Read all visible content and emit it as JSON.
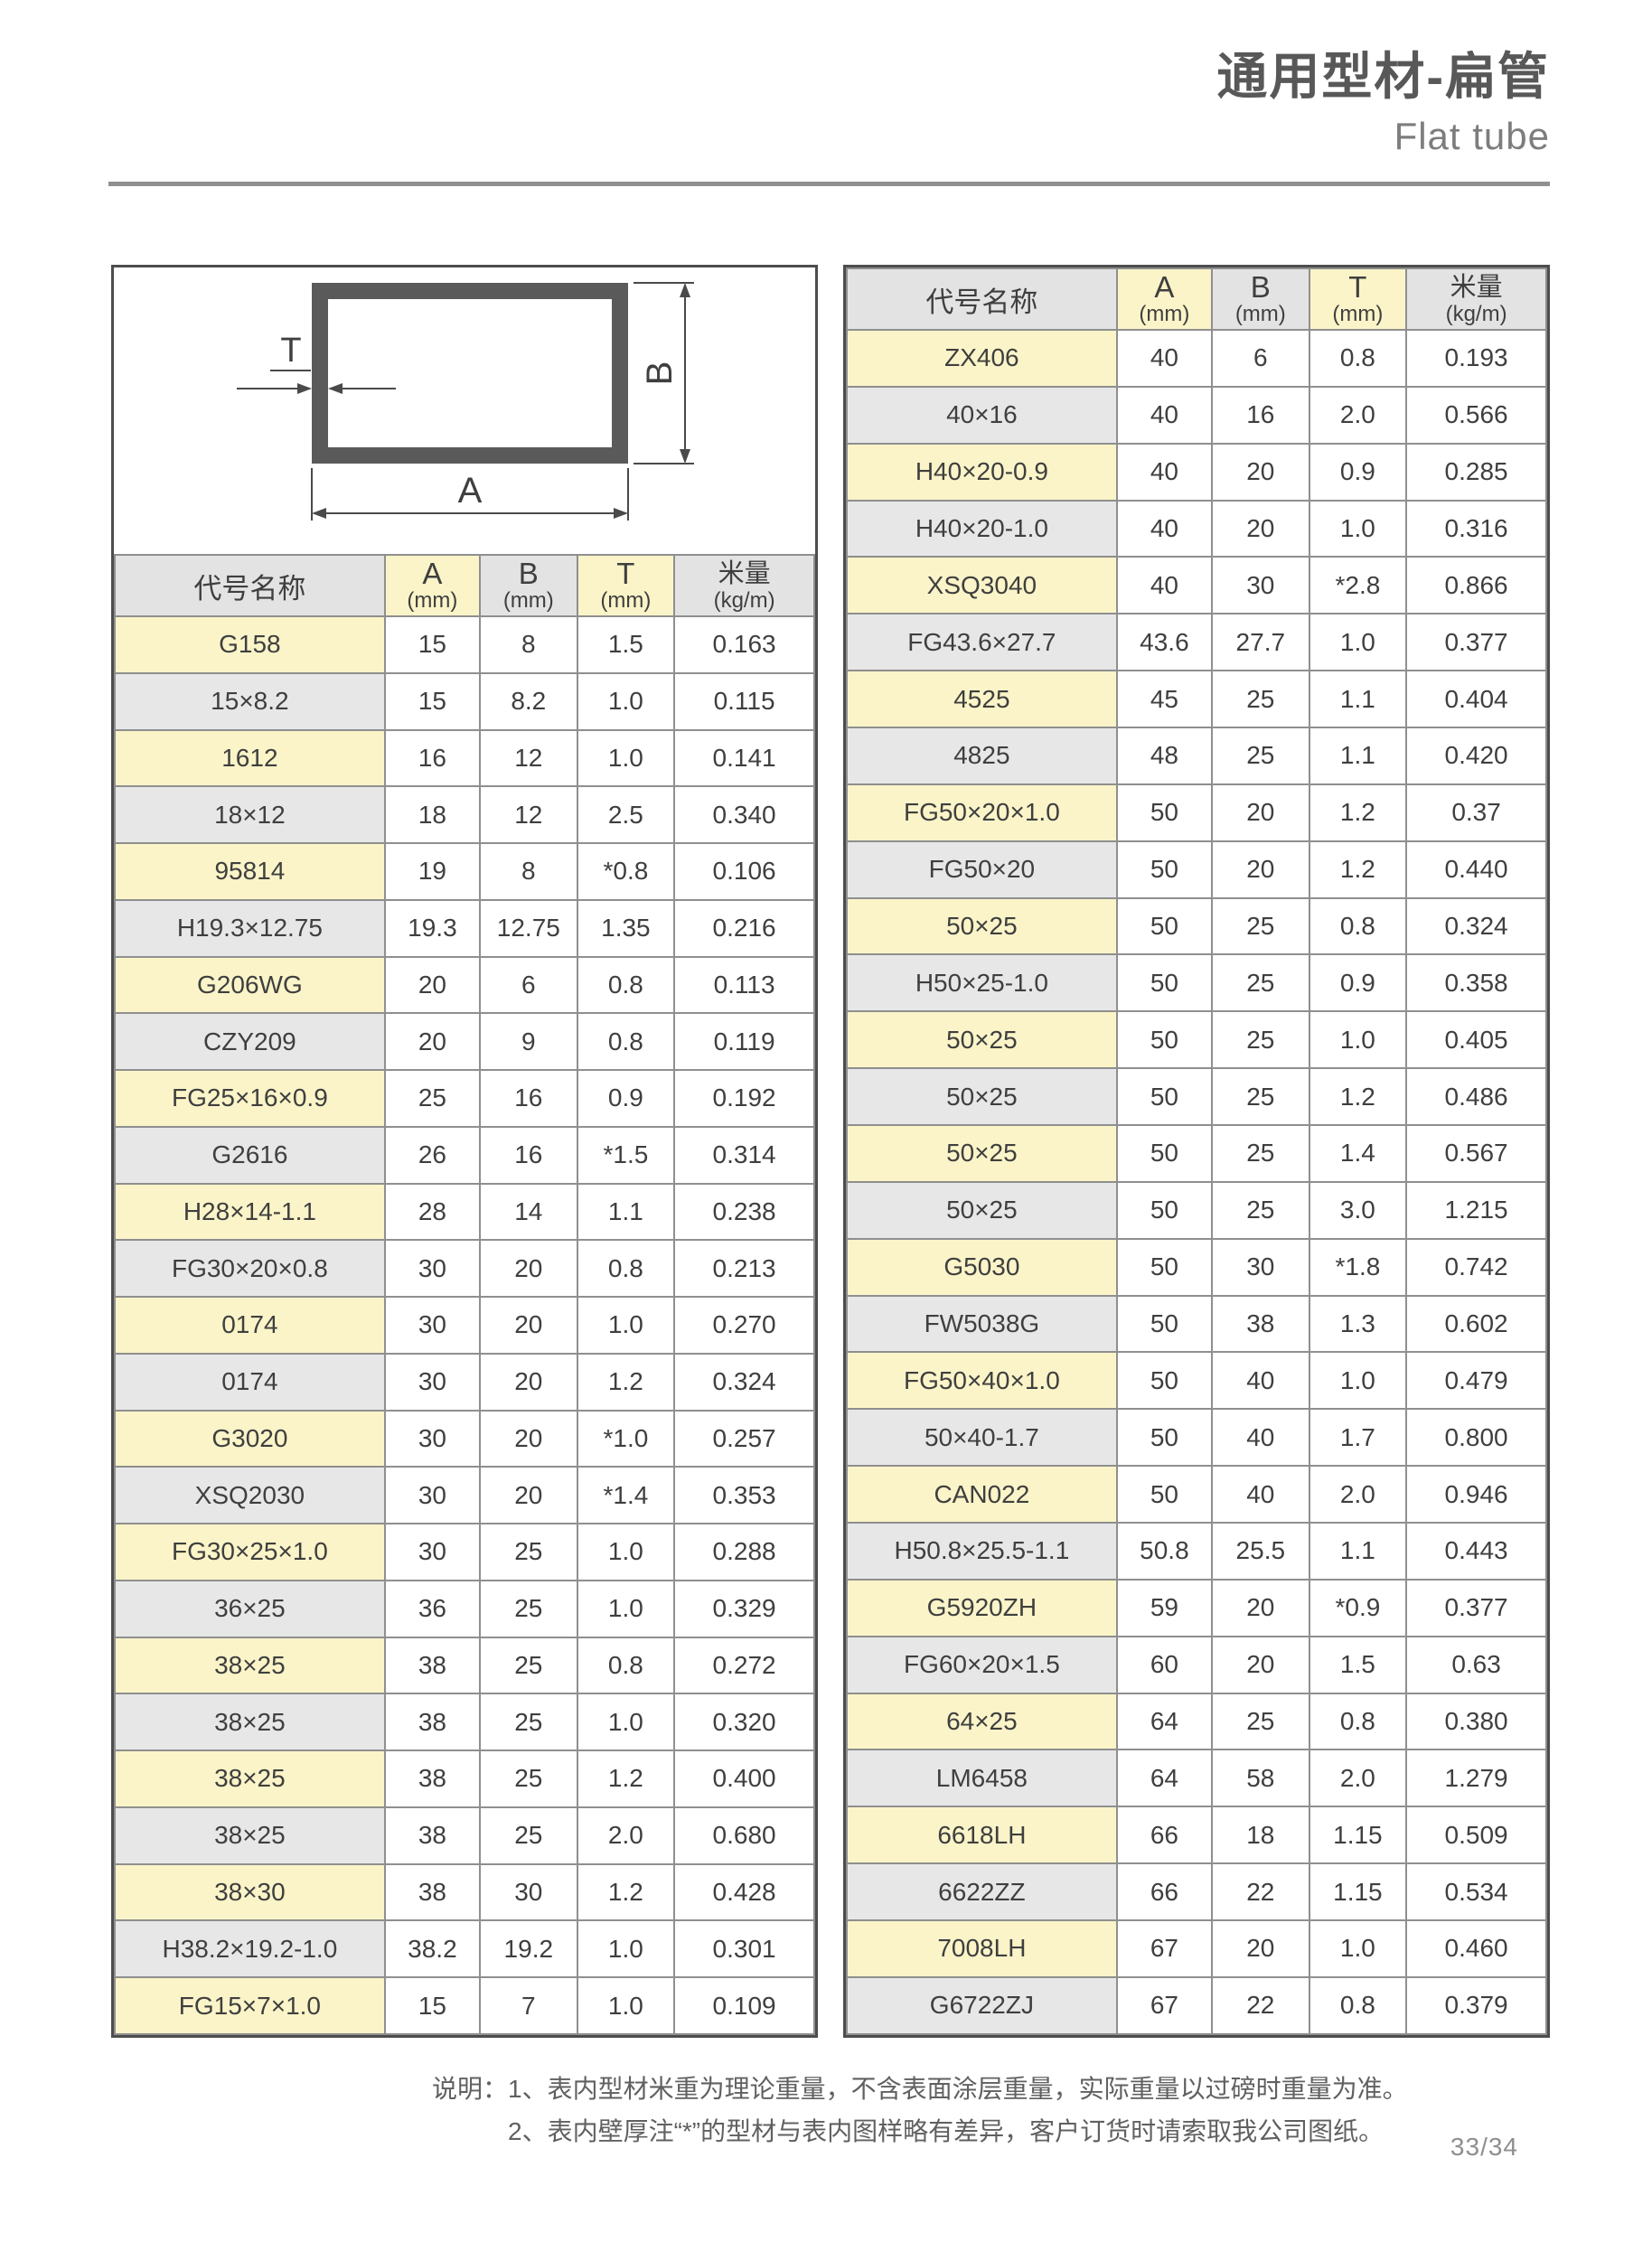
{
  "page": {
    "title_cn": "通用型材-扁管",
    "title_en": "Flat tube",
    "page_number": "33/34"
  },
  "diagram": {
    "label_a": "A",
    "label_b": "B",
    "label_t": "T"
  },
  "table_headers": {
    "name": "代号名称",
    "a": "A",
    "b": "B",
    "t": "T",
    "weight": "米量",
    "mm": "(mm)",
    "kgm": "(kg/m)"
  },
  "left_table": {
    "rows": [
      [
        "G158",
        "15",
        "8",
        "1.5",
        "0.163"
      ],
      [
        "15×8.2",
        "15",
        "8.2",
        "1.0",
        "0.115"
      ],
      [
        "1612",
        "16",
        "12",
        "1.0",
        "0.141"
      ],
      [
        "18×12",
        "18",
        "12",
        "2.5",
        "0.340"
      ],
      [
        "95814",
        "19",
        "8",
        "*0.8",
        "0.106"
      ],
      [
        "H19.3×12.75",
        "19.3",
        "12.75",
        "1.35",
        "0.216"
      ],
      [
        "G206WG",
        "20",
        "6",
        "0.8",
        "0.113"
      ],
      [
        "CZY209",
        "20",
        "9",
        "0.8",
        "0.119"
      ],
      [
        "FG25×16×0.9",
        "25",
        "16",
        "0.9",
        "0.192"
      ],
      [
        "G2616",
        "26",
        "16",
        "*1.5",
        "0.314"
      ],
      [
        "H28×14-1.1",
        "28",
        "14",
        "1.1",
        "0.238"
      ],
      [
        "FG30×20×0.8",
        "30",
        "20",
        "0.8",
        "0.213"
      ],
      [
        "0174",
        "30",
        "20",
        "1.0",
        "0.270"
      ],
      [
        "0174",
        "30",
        "20",
        "1.2",
        "0.324"
      ],
      [
        "G3020",
        "30",
        "20",
        "*1.0",
        "0.257"
      ],
      [
        "XSQ2030",
        "30",
        "20",
        "*1.4",
        "0.353"
      ],
      [
        "FG30×25×1.0",
        "30",
        "25",
        "1.0",
        "0.288"
      ],
      [
        "36×25",
        "36",
        "25",
        "1.0",
        "0.329"
      ],
      [
        "38×25",
        "38",
        "25",
        "0.8",
        "0.272"
      ],
      [
        "38×25",
        "38",
        "25",
        "1.0",
        "0.320"
      ],
      [
        "38×25",
        "38",
        "25",
        "1.2",
        "0.400"
      ],
      [
        "38×25",
        "38",
        "25",
        "2.0",
        "0.680"
      ],
      [
        "38×30",
        "38",
        "30",
        "1.2",
        "0.428"
      ],
      [
        "H38.2×19.2-1.0",
        "38.2",
        "19.2",
        "1.0",
        "0.301"
      ],
      [
        "FG15×7×1.0",
        "15",
        "7",
        "1.0",
        "0.109"
      ]
    ]
  },
  "right_table": {
    "rows": [
      [
        "ZX406",
        "40",
        "6",
        "0.8",
        "0.193"
      ],
      [
        "40×16",
        "40",
        "16",
        "2.0",
        "0.566"
      ],
      [
        "H40×20-0.9",
        "40",
        "20",
        "0.9",
        "0.285"
      ],
      [
        "H40×20-1.0",
        "40",
        "20",
        "1.0",
        "0.316"
      ],
      [
        "XSQ3040",
        "40",
        "30",
        "*2.8",
        "0.866"
      ],
      [
        "FG43.6×27.7",
        "43.6",
        "27.7",
        "1.0",
        "0.377"
      ],
      [
        "4525",
        "45",
        "25",
        "1.1",
        "0.404"
      ],
      [
        "4825",
        "48",
        "25",
        "1.1",
        "0.420"
      ],
      [
        "FG50×20×1.0",
        "50",
        "20",
        "1.2",
        "0.37"
      ],
      [
        "FG50×20",
        "50",
        "20",
        "1.2",
        "0.440"
      ],
      [
        "50×25",
        "50",
        "25",
        "0.8",
        "0.324"
      ],
      [
        "H50×25-1.0",
        "50",
        "25",
        "0.9",
        "0.358"
      ],
      [
        "50×25",
        "50",
        "25",
        "1.0",
        "0.405"
      ],
      [
        "50×25",
        "50",
        "25",
        "1.2",
        "0.486"
      ],
      [
        "50×25",
        "50",
        "25",
        "1.4",
        "0.567"
      ],
      [
        "50×25",
        "50",
        "25",
        "3.0",
        "1.215"
      ],
      [
        "G5030",
        "50",
        "30",
        "*1.8",
        "0.742"
      ],
      [
        "FW5038G",
        "50",
        "38",
        "1.3",
        "0.602"
      ],
      [
        "FG50×40×1.0",
        "50",
        "40",
        "1.0",
        "0.479"
      ],
      [
        "50×40-1.7",
        "50",
        "40",
        "1.7",
        "0.800"
      ],
      [
        "CAN022",
        "50",
        "40",
        "2.0",
        "0.946"
      ],
      [
        "H50.8×25.5-1.1",
        "50.8",
        "25.5",
        "1.1",
        "0.443"
      ],
      [
        "G5920ZH",
        "59",
        "20",
        "*0.9",
        "0.377"
      ],
      [
        "FG60×20×1.5",
        "60",
        "20",
        "1.5",
        "0.63"
      ],
      [
        "64×25",
        "64",
        "25",
        "0.8",
        "0.380"
      ],
      [
        "LM6458",
        "64",
        "58",
        "2.0",
        "1.279"
      ],
      [
        "6618LH",
        "66",
        "18",
        "1.15",
        "0.509"
      ],
      [
        "6622ZZ",
        "66",
        "22",
        "1.15",
        "0.534"
      ],
      [
        "7008LH",
        "67",
        "20",
        "1.0",
        "0.460"
      ],
      [
        "G6722ZJ",
        "67",
        "22",
        "0.8",
        "0.379"
      ]
    ]
  },
  "notes": {
    "label": "说明：",
    "line1": "1、表内型材米重为理论重量，不含表面涂层重量，实际重量以过磅时重量为准。",
    "line2": "2、表内壁厚注“*”的型材与表内图样略有差异，客户订货时请索取我公司图纸。"
  },
  "colors": {
    "row_highlight_yellow": "#FAF4C8",
    "row_gray": "#E7E7E7",
    "header_gray": "#E3E3E3",
    "border_dark": "#4D4D4D",
    "border_light": "#8F8F8F",
    "text": "#3F3F3F",
    "title": "#585858"
  }
}
